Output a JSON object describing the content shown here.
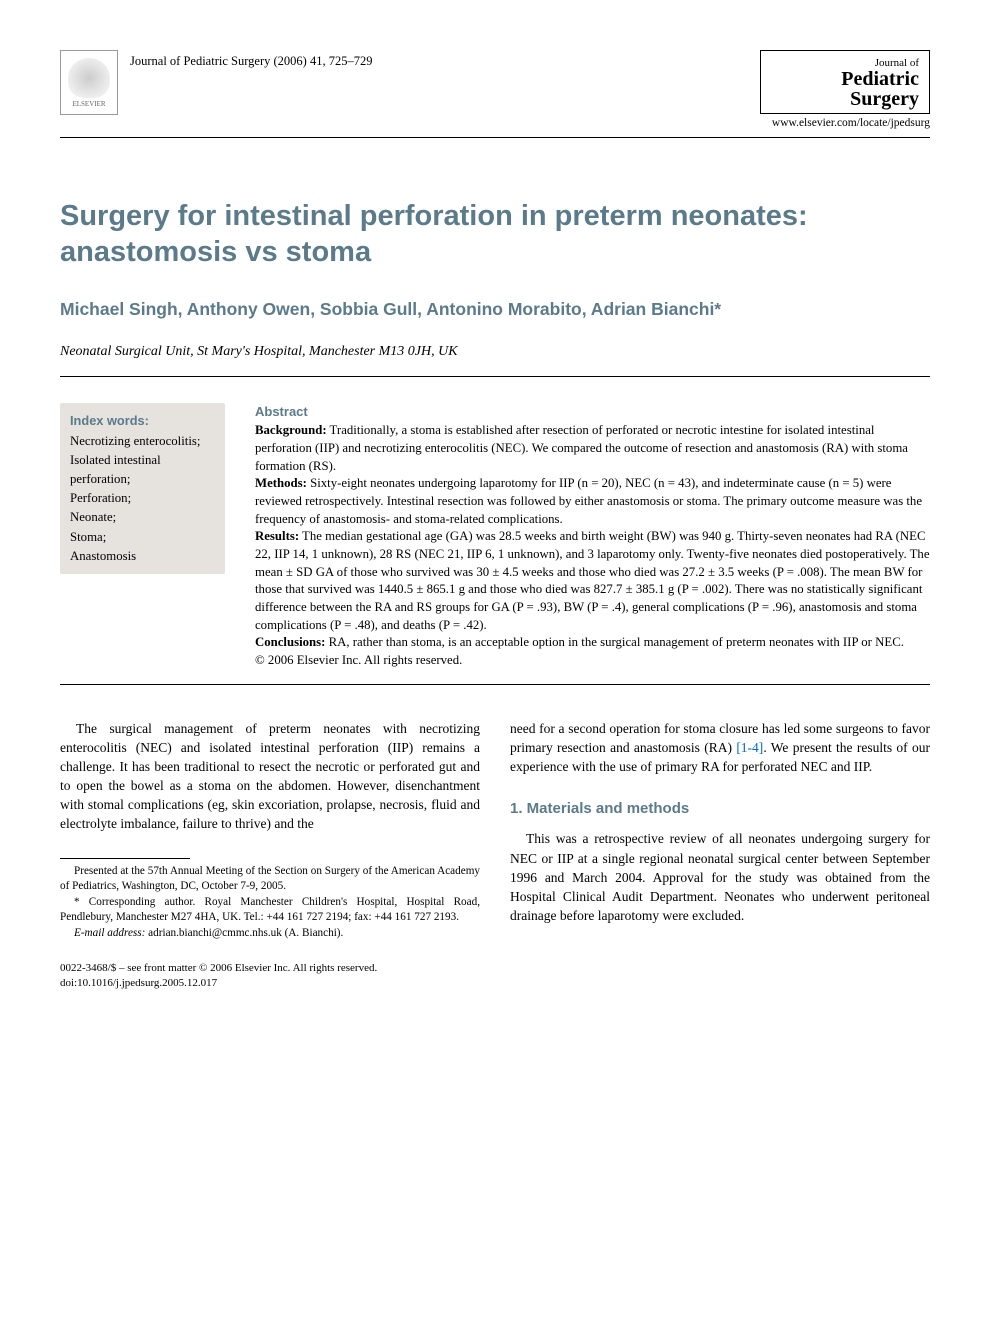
{
  "header": {
    "elsevier_label": "ELSEVIER",
    "citation": "Journal of Pediatric Surgery (2006) 41, 725–729",
    "journal_line1": "Journal of",
    "journal_line2": "Pediatric",
    "journal_line3": "Surgery",
    "journal_url": "www.elsevier.com/locate/jpedsurg"
  },
  "title": "Surgery for intestinal perforation in preterm neonates: anastomosis vs stoma",
  "authors": "Michael Singh, Anthony Owen, Sobbia Gull, Antonino Morabito, Adrian Bianchi*",
  "affiliation": "Neonatal Surgical Unit, St Mary's Hospital, Manchester M13 0JH, UK",
  "keywords": {
    "heading": "Index words:",
    "items": "Necrotizing enterocolitis;\nIsolated intestinal\n  perforation;\nPerforation;\nNeonate;\nStoma;\nAnastomosis"
  },
  "abstract": {
    "heading": "Abstract",
    "background_label": "Background:",
    "background": " Traditionally, a stoma is established after resection of perforated or necrotic intestine for isolated intestinal perforation (IIP) and necrotizing enterocolitis (NEC). We compared the outcome of resection and anastomosis (RA) with stoma formation (RS).",
    "methods_label": "Methods:",
    "methods": " Sixty-eight neonates undergoing laparotomy for IIP (n = 20), NEC (n = 43), and indeterminate cause (n = 5) were reviewed retrospectively. Intestinal resection was followed by either anastomosis or stoma. The primary outcome measure was the frequency of anastomosis- and stoma-related complications.",
    "results_label": "Results:",
    "results": " The median gestational age (GA) was 28.5 weeks and birth weight (BW) was 940 g. Thirty-seven neonates had RA (NEC 22, IIP 14, 1 unknown), 28 RS (NEC 21, IIP 6, 1 unknown), and 3 laparotomy only. Twenty-five neonates died postoperatively. The mean ± SD GA of those who survived was 30 ± 4.5 weeks and those who died was 27.2 ± 3.5 weeks (P = .008). The mean BW for those that survived was 1440.5 ± 865.1 g and those who died was 827.7 ± 385.1 g (P = .002). There was no statistically significant difference between the RA and RS groups for GA (P = .93), BW (P = .4), general complications (P = .96), anastomosis and stoma complications (P = .48), and deaths (P = .42).",
    "conclusions_label": "Conclusions:",
    "conclusions": " RA, rather than stoma, is an acceptable option in the surgical management of preterm neonates with IIP or NEC.",
    "copyright": "© 2006 Elsevier Inc. All rights reserved."
  },
  "body": {
    "col_left_p1": "The surgical management of preterm neonates with necrotizing enterocolitis (NEC) and isolated intestinal perforation (IIP) remains a challenge. It has been traditional to resect the necrotic or perforated gut and to open the bowel as a stoma on the abdomen. However, disenchantment with stomal complications (eg, skin excoriation, prolapse, necrosis, fluid and electrolyte imbalance, failure to thrive) and the",
    "col_right_p1_a": "need for a second operation for stoma closure has led some surgeons to favor primary resection and anastomosis (RA) ",
    "col_right_ref": "[1-4]",
    "col_right_p1_b": ". We present the results of our experience with the use of primary RA for perforated NEC and IIP.",
    "section1_heading": "1. Materials and methods",
    "col_right_p2": "This was a retrospective review of all neonates undergoing surgery for NEC or IIP at a single regional neonatal surgical center between September 1996 and March 2004. Approval for the study was obtained from the Hospital Clinical Audit Department. Neonates who underwent peritoneal drainage before laparotomy were excluded."
  },
  "footnotes": {
    "presented": "Presented at the 57th Annual Meeting of the Section on Surgery of the American Academy of Pediatrics, Washington, DC, October 7-9, 2005.",
    "corresponding": "* Corresponding author. Royal Manchester Children's Hospital, Hospital Road, Pendlebury, Manchester M27 4HA, UK. Tel.: +44 161 727 2194; fax: +44 161 727 2193.",
    "email_label": "E-mail address:",
    "email": " adrian.bianchi@cmmc.nhs.uk (A. Bianchi)."
  },
  "bottom": {
    "line1": "0022-3468/$ – see front matter © 2006 Elsevier Inc. All rights reserved.",
    "line2": "doi:10.1016/j.jpedsurg.2005.12.017"
  }
}
